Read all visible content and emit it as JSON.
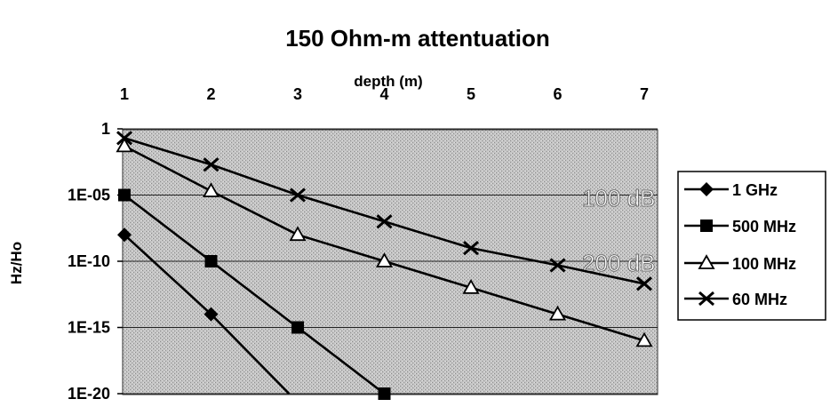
{
  "chart_data": {
    "type": "line",
    "title": "150 Ohm-m attentuation",
    "xlabel": "depth (m)",
    "ylabel": "Hz/Ho",
    "x": [
      1,
      2,
      3,
      4,
      5,
      6,
      7
    ],
    "x_tick_labels": [
      "1",
      "2",
      "3",
      "4",
      "5",
      "6",
      "7"
    ],
    "x_axis_position": "top",
    "y_scale": "log",
    "ylim": [
      1e-20,
      1
    ],
    "y_tick_values": [
      1,
      1e-05,
      1e-10,
      1e-15,
      1e-20
    ],
    "y_tick_labels": [
      "1",
      "1E-05",
      "1E-10",
      "1E-15",
      "1E-20"
    ],
    "grid": "horizontal",
    "legend_position": "right",
    "series": [
      {
        "name": "1 GHz",
        "marker": "diamond",
        "x": [
          1,
          2,
          2.9
        ],
        "values": [
          1e-08,
          1e-14,
          1e-20
        ]
      },
      {
        "name": "500 MHz",
        "marker": "square",
        "x": [
          1,
          2,
          3,
          4
        ],
        "values": [
          1e-05,
          1e-10,
          1e-15,
          1e-20
        ]
      },
      {
        "name": "100 MHz",
        "marker": "triangle",
        "x": [
          1,
          2,
          3,
          4,
          5,
          6,
          7
        ],
        "values": [
          0.05,
          2e-05,
          1e-08,
          1e-10,
          1e-12,
          1e-14,
          1e-16
        ]
      },
      {
        "name": "60 MHz",
        "marker": "x",
        "x": [
          1,
          2,
          3,
          4,
          5,
          6,
          7
        ],
        "values": [
          0.2,
          0.002,
          1e-05,
          1e-07,
          1e-09,
          5e-11,
          2e-12
        ]
      }
    ],
    "annotations": [
      "100 dB",
      "200 dB"
    ]
  }
}
